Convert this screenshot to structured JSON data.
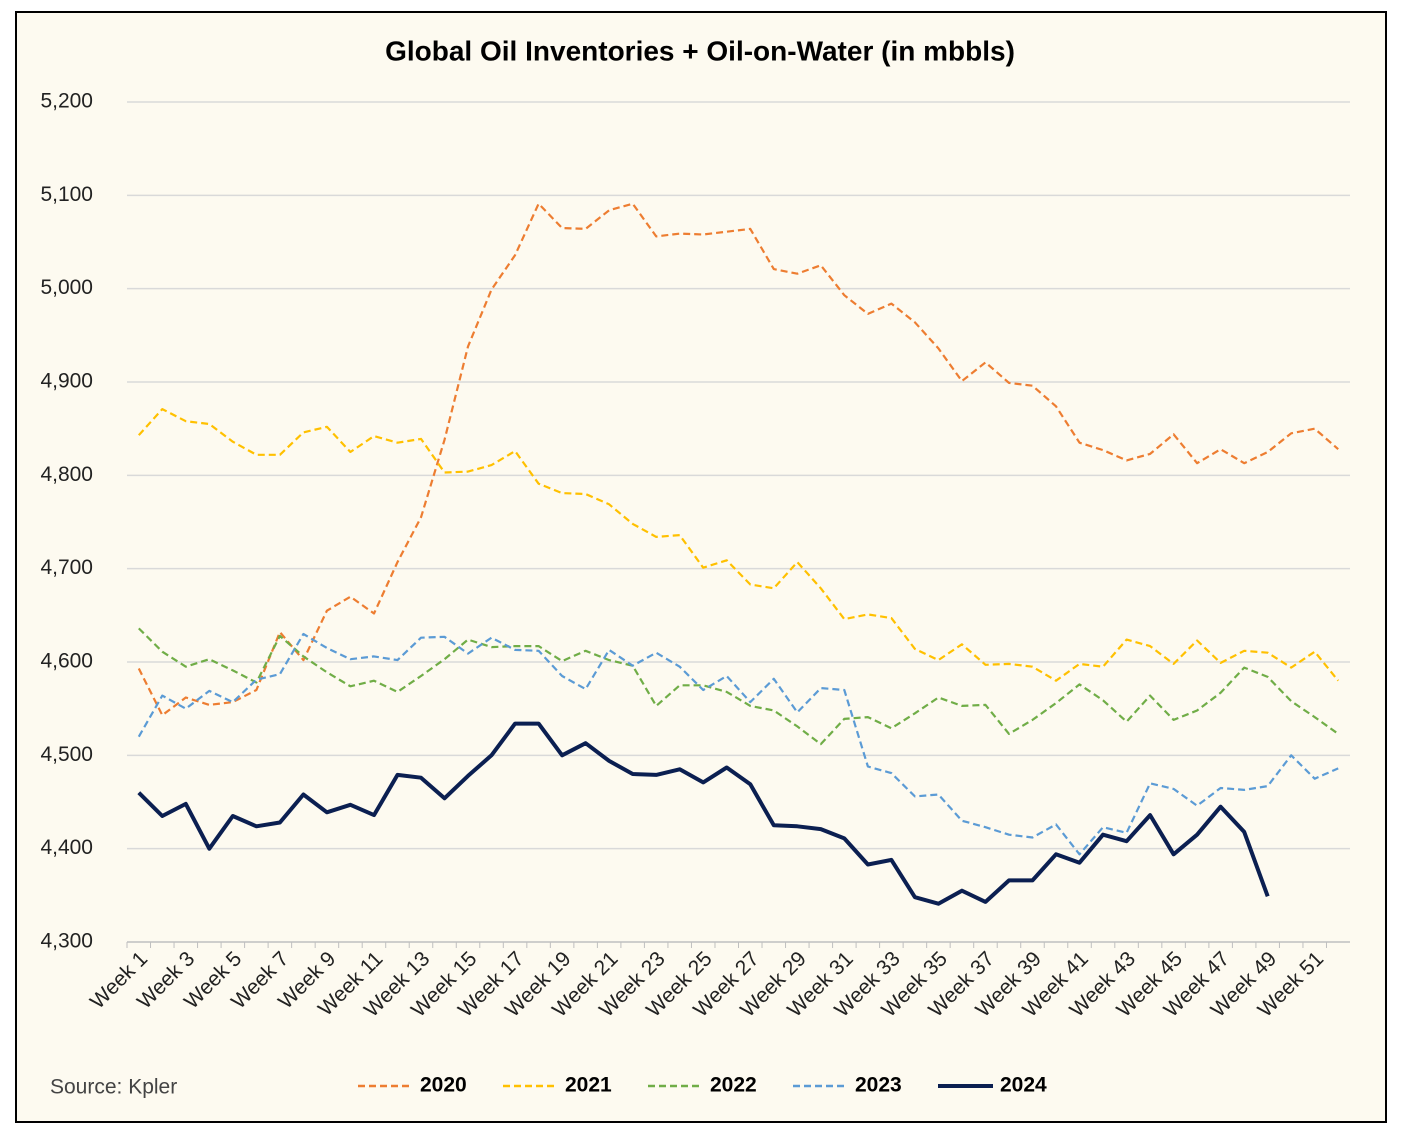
{
  "chart_data": {
    "type": "line",
    "title": "Global Oil Inventories + Oil-on-Water (in mbbls)",
    "source": "Source: Kpler",
    "categories": [
      "Week 1",
      null,
      "Week 3",
      null,
      "Week 5",
      null,
      "Week 7",
      null,
      "Week 9",
      null,
      "Week 11",
      null,
      "Week 13",
      null,
      "Week 15",
      null,
      "Week 17",
      null,
      "Week 19",
      null,
      "Week 21",
      null,
      "Week 23",
      null,
      "Week 25",
      null,
      "Week 27",
      null,
      "Week 29",
      null,
      "Week 31",
      null,
      "Week 33",
      null,
      "Week 35",
      null,
      "Week 37",
      null,
      "Week 39",
      null,
      "Week 41",
      null,
      "Week 43",
      null,
      "Week 45",
      null,
      "Week 47",
      null,
      "Week 49",
      null,
      "Week 51",
      null
    ],
    "series": [
      {
        "name": "2020",
        "color": "#ed7d31",
        "dashed": true,
        "values": [
          4593,
          4543,
          4562,
          4554,
          4557,
          4570,
          4632,
          4602,
          4655,
          4670,
          4652,
          4707,
          4755,
          4838,
          4938,
          4999,
          5036,
          5091,
          5065,
          5064,
          5084,
          5091,
          5056,
          5059,
          5058,
          5061,
          5064,
          5021,
          5016,
          5025,
          4993,
          4973,
          4984,
          4964,
          4936,
          4901,
          4921,
          4899,
          4896,
          4874,
          4835,
          4827,
          4816,
          4823,
          4844,
          4813,
          4828,
          4813,
          4825,
          4845,
          4850,
          4828
        ]
      },
      {
        "name": "2021",
        "color": "#ffc000",
        "dashed": true,
        "values": [
          4843,
          4871,
          4858,
          4855,
          4836,
          4822,
          4822,
          4846,
          4852,
          4825,
          4842,
          4835,
          4839,
          4803,
          4804,
          4811,
          4826,
          4791,
          4781,
          4780,
          4769,
          4748,
          4734,
          4736,
          4701,
          4709,
          4683,
          4679,
          4707,
          4679,
          4646,
          4651,
          4647,
          4614,
          4602,
          4619,
          4597,
          4598,
          4595,
          4580,
          4598,
          4595,
          4624,
          4617,
          4598,
          4623,
          4599,
          4612,
          4610,
          4594,
          4611,
          4580
        ]
      },
      {
        "name": "2022",
        "color": "#70ad47",
        "dashed": true,
        "values": [
          4636,
          4611,
          4595,
          4603,
          4591,
          4578,
          4628,
          4606,
          4589,
          4574,
          4580,
          4568,
          4585,
          4603,
          4624,
          4616,
          4617,
          4617,
          4601,
          4612,
          4602,
          4596,
          4553,
          4575,
          4575,
          4568,
          4553,
          4548,
          4531,
          4512,
          4539,
          4541,
          4529,
          4545,
          4562,
          4553,
          4554,
          4523,
          4538,
          4556,
          4576,
          4559,
          4536,
          4564,
          4538,
          4548,
          4567,
          4594,
          4584,
          4558,
          4541,
          4523
        ]
      },
      {
        "name": "2023",
        "color": "#5b9bd5",
        "dashed": true,
        "values": [
          4520,
          4564,
          4550,
          4569,
          4557,
          4581,
          4587,
          4630,
          4615,
          4603,
          4606,
          4602,
          4626,
          4627,
          4609,
          4626,
          4613,
          4612,
          4585,
          4571,
          4613,
          4596,
          4610,
          4595,
          4570,
          4585,
          4557,
          4582,
          4546,
          4572,
          4570,
          4488,
          4481,
          4456,
          4458,
          4430,
          4423,
          4415,
          4412,
          4426,
          4394,
          4423,
          4417,
          4470,
          4464,
          4446,
          4465,
          4463,
          4467,
          4500,
          4475,
          4486
        ]
      },
      {
        "name": "2024",
        "color": "#0b1f51",
        "dashed": false,
        "values": [
          4460,
          4435,
          4448,
          4400,
          4435,
          4424,
          4428,
          4458,
          4439,
          4447,
          4436,
          4479,
          4476,
          4454,
          4478,
          4500,
          4534,
          4534,
          4500,
          4513,
          4494,
          4480,
          4479,
          4485,
          4471,
          4487,
          4469,
          4425,
          4424,
          4421,
          4411,
          4383,
          4388,
          4348,
          4341,
          4355,
          4343,
          4366,
          4366,
          4394,
          4385,
          4415,
          4408,
          4436,
          4394,
          4415,
          4445,
          4418,
          4349,
          null,
          null,
          null
        ]
      }
    ],
    "ylim": [
      4300,
      5200
    ],
    "yticks": [
      {
        "value": 4300,
        "label": "4,300"
      },
      {
        "value": 4400,
        "label": "4,400"
      },
      {
        "value": 4500,
        "label": "4,500"
      },
      {
        "value": 4600,
        "label": "4,600"
      },
      {
        "value": 4700,
        "label": "4,700"
      },
      {
        "value": 4800,
        "label": "4,800"
      },
      {
        "value": 4900,
        "label": "4,900"
      },
      {
        "value": 5000,
        "label": "5,000"
      },
      {
        "value": 5100,
        "label": "5,100"
      },
      {
        "value": 5200,
        "label": "5,200"
      }
    ],
    "grid": true,
    "legend": "bottom"
  }
}
